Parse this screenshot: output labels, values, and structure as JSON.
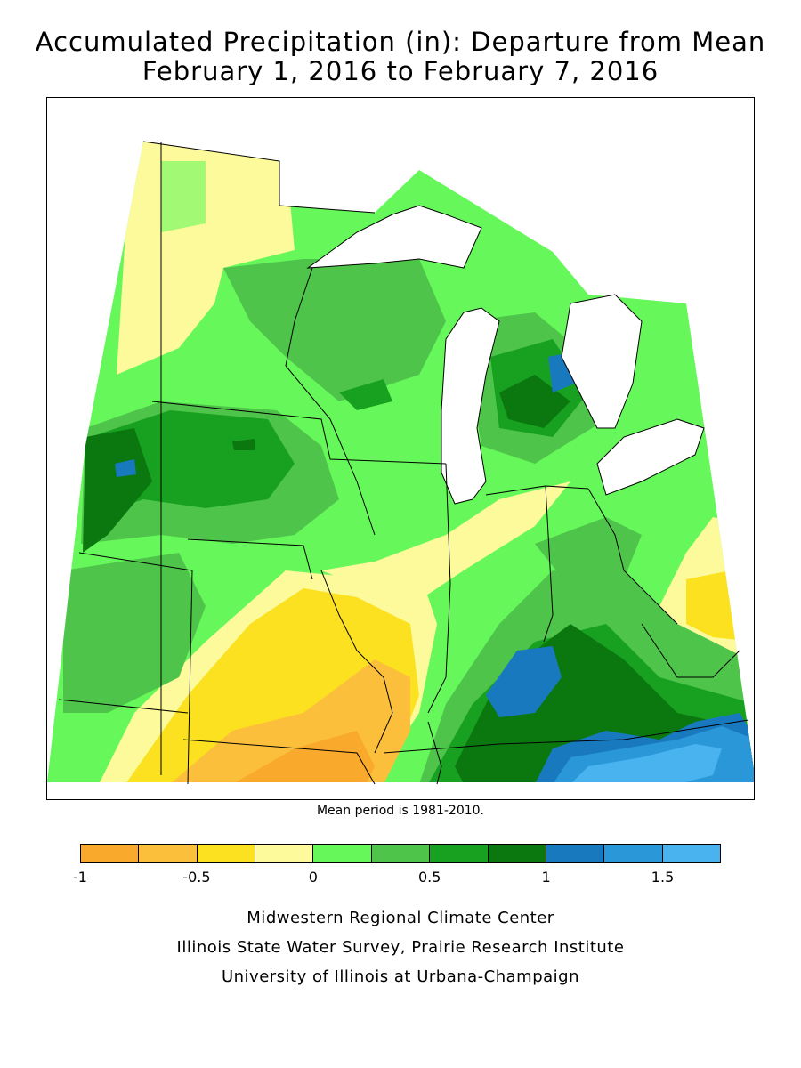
{
  "title_line1": "Accumulated Precipitation (in): Departure from Mean",
  "title_line2": "February 1, 2016 to February 7, 2016",
  "mean_note": "Mean period is 1981-2010.",
  "legend": {
    "colors": [
      "#f9a92b",
      "#fbbf3c",
      "#fbe11f",
      "#fcfa9b",
      "#66f85a",
      "#4ec44a",
      "#18a121",
      "#0a780f",
      "#1879be",
      "#2a97d8",
      "#48b3ee"
    ],
    "tick_labels": [
      "-1",
      "-0.5",
      "0",
      "0.5",
      "1",
      "1.5"
    ],
    "tick_values": [
      -1,
      -0.5,
      0,
      0.5,
      1,
      1.5
    ],
    "min": -1,
    "max": 1.75
  },
  "credits": {
    "line1": "Midwestern Regional Climate Center",
    "line2": "Illinois State Water Survey, Prairie Research Institute",
    "line3": "University of Illinois at Urbana-Champaign"
  }
}
